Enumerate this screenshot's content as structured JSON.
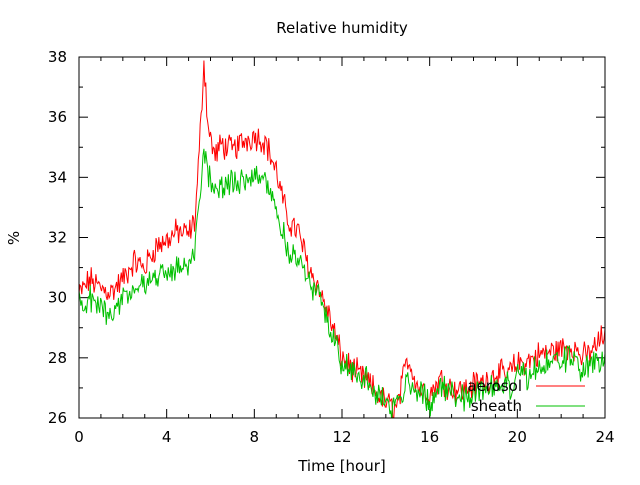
{
  "chart_data": {
    "type": "line",
    "title": "Relative humidity",
    "xlabel": "Time [hour]",
    "ylabel": "%",
    "xlim": [
      0,
      24
    ],
    "ylim": [
      26,
      38
    ],
    "x_ticks": [
      0,
      4,
      8,
      12,
      16,
      20,
      24
    ],
    "y_ticks": [
      26,
      28,
      30,
      32,
      34,
      36,
      38
    ],
    "grid": false,
    "legend_position": "bottom-right",
    "series": [
      {
        "name": "aerosol",
        "color": "#ff0000",
        "x": [
          0,
          0.5,
          1,
          1.5,
          2,
          2.5,
          3,
          3.5,
          4,
          4.5,
          5,
          5.3,
          5.5,
          5.7,
          5.9,
          6.2,
          6.5,
          7,
          7.5,
          8,
          8.5,
          9,
          9.5,
          10,
          10.5,
          11,
          11.5,
          12,
          12.5,
          13,
          13.5,
          14,
          14.5,
          15,
          15.5,
          16,
          16.5,
          17,
          17.5,
          18,
          18.5,
          19,
          19.5,
          20,
          20.5,
          21,
          21.5,
          22,
          22.5,
          23,
          23.5,
          24
        ],
        "y": [
          30.1,
          30.6,
          30.3,
          30.2,
          30.6,
          31.2,
          31.0,
          31.7,
          31.9,
          32.2,
          32.1,
          32.6,
          35.0,
          37.9,
          35.6,
          34.7,
          35.1,
          34.9,
          35.2,
          35.4,
          35.2,
          34.2,
          32.6,
          32.2,
          31.0,
          30.2,
          29.2,
          28.0,
          27.6,
          27.3,
          26.9,
          26.5,
          26.3,
          28.0,
          27.0,
          26.8,
          27.3,
          27.0,
          26.9,
          27.1,
          27.2,
          27.5,
          27.4,
          27.8,
          27.9,
          28.1,
          28.2,
          28.3,
          28.4,
          28.0,
          28.3,
          28.8
        ]
      },
      {
        "name": "sheath",
        "color": "#00c000",
        "x": [
          0,
          0.5,
          1,
          1.5,
          2,
          2.5,
          3,
          3.5,
          4,
          4.5,
          5,
          5.3,
          5.5,
          5.7,
          5.9,
          6.2,
          6.5,
          7,
          7.5,
          8,
          8.5,
          9,
          9.5,
          10,
          10.5,
          11,
          11.5,
          12,
          12.5,
          13,
          13.5,
          14,
          14.5,
          15,
          15.5,
          16,
          16.5,
          17,
          17.5,
          18,
          18.5,
          19,
          19.5,
          20,
          20.5,
          21,
          21.5,
          22,
          22.5,
          23,
          23.5,
          24
        ],
        "y": [
          29.8,
          29.9,
          29.7,
          29.5,
          30.0,
          30.3,
          30.4,
          30.7,
          30.8,
          31.0,
          31.2,
          31.7,
          33.0,
          34.7,
          34.2,
          33.5,
          33.8,
          33.7,
          34.0,
          34.1,
          34.0,
          33.0,
          31.6,
          31.3,
          30.5,
          29.9,
          29.0,
          27.9,
          27.5,
          27.3,
          26.9,
          26.5,
          26.3,
          27.3,
          26.9,
          26.5,
          27.0,
          26.9,
          26.7,
          26.8,
          27.0,
          27.1,
          27.0,
          27.3,
          27.4,
          27.7,
          27.8,
          27.9,
          28.0,
          27.6,
          27.9,
          27.7
        ]
      }
    ]
  }
}
